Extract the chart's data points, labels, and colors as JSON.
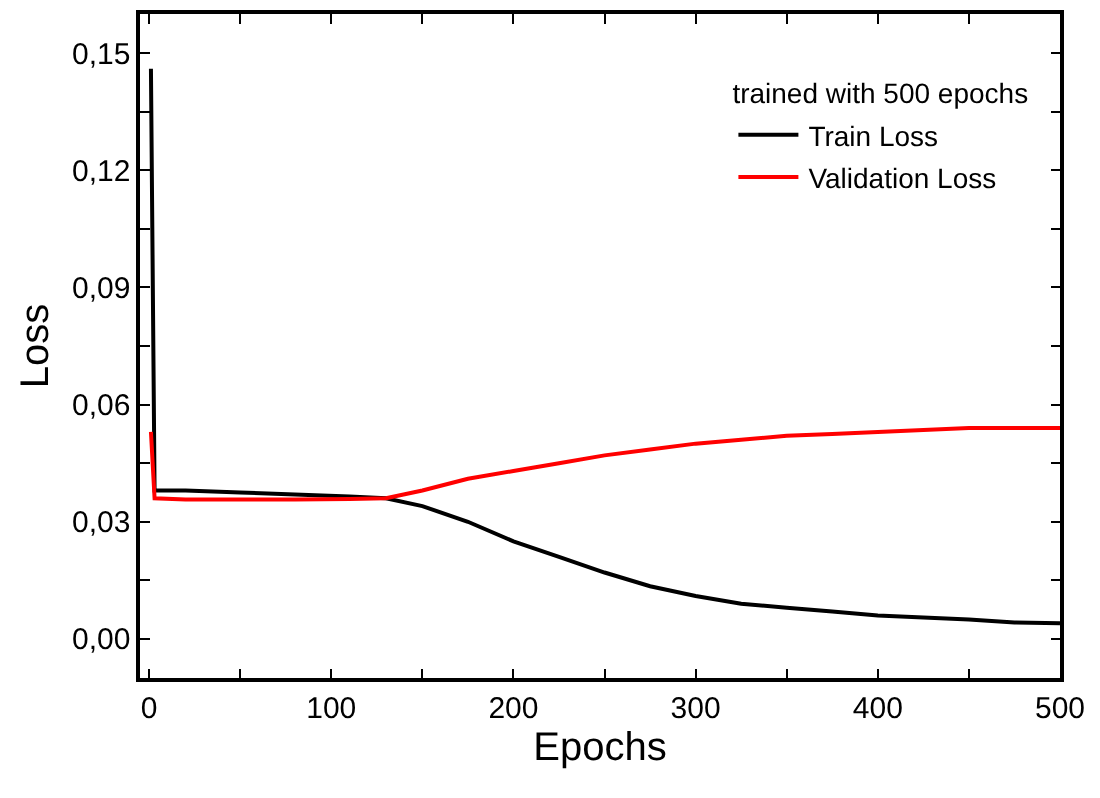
{
  "chart_data": {
    "type": "line",
    "xlabel": "Epochs",
    "ylabel": "Loss",
    "legend_title": "trained with 500 epochs",
    "xlim": [
      -5,
      500
    ],
    "ylim": [
      -0.01,
      0.16
    ],
    "xticks": [
      0,
      {
        "value": 50,
        "label": null
      },
      100,
      {
        "value": 150,
        "label": null
      },
      200,
      {
        "value": 250,
        "label": null
      },
      300,
      {
        "value": 350,
        "label": null
      },
      400,
      {
        "value": 450,
        "label": null
      },
      500
    ],
    "yticks": [
      {
        "value": 0,
        "label": "0,00"
      },
      {
        "value": 0.015,
        "label": null
      },
      {
        "value": 0.03,
        "label": "0,03"
      },
      {
        "value": 0.045,
        "label": null
      },
      {
        "value": 0.06,
        "label": "0,06"
      },
      {
        "value": 0.075,
        "label": null
      },
      {
        "value": 0.09,
        "label": "0,09"
      },
      {
        "value": 0.105,
        "label": null
      },
      {
        "value": 0.12,
        "label": "0,12"
      },
      {
        "value": 0.135,
        "label": null
      },
      {
        "value": 0.15,
        "label": "0,15"
      }
    ],
    "legend": "top right",
    "marker": "none",
    "line_style": "solid",
    "series": [
      {
        "name": "Train Loss",
        "color": "#000000",
        "x": [
          1,
          3,
          20,
          50,
          80,
          110,
          130,
          150,
          175,
          200,
          225,
          250,
          275,
          300,
          325,
          350,
          375,
          400,
          425,
          450,
          475,
          500
        ],
        "values": [
          0.146,
          0.038,
          0.038,
          0.0375,
          0.037,
          0.0365,
          0.036,
          0.034,
          0.03,
          0.025,
          0.021,
          0.017,
          0.0135,
          0.011,
          0.009,
          0.008,
          0.007,
          0.006,
          0.0055,
          0.005,
          0.0042,
          0.004
        ]
      },
      {
        "name": "Validation Loss",
        "color": "#ff0000",
        "x": [
          1,
          3,
          20,
          50,
          80,
          110,
          130,
          150,
          175,
          200,
          225,
          250,
          275,
          300,
          325,
          350,
          375,
          400,
          425,
          450,
          475,
          500
        ],
        "values": [
          0.053,
          0.036,
          0.0357,
          0.0357,
          0.0357,
          0.0358,
          0.036,
          0.038,
          0.041,
          0.043,
          0.045,
          0.047,
          0.0485,
          0.05,
          0.051,
          0.052,
          0.0525,
          0.053,
          0.0535,
          0.054,
          0.054,
          0.054
        ]
      }
    ]
  }
}
